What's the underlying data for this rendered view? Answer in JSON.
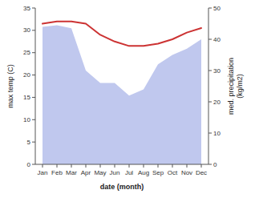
{
  "chart_data": {
    "type": "line",
    "categories": [
      "Jan",
      "Feb",
      "Mar",
      "Apr",
      "May",
      "Jun",
      "Jul",
      "Aug",
      "Sep",
      "Oct",
      "Nov",
      "Dec"
    ],
    "series": [
      {
        "type": "area",
        "axis": "y2",
        "color": "#c0c8ee",
        "values": [
          44.0,
          44.5,
          43.5,
          30.0,
          26.0,
          26.0,
          22.0,
          24.0,
          32.0,
          35.0,
          37.0,
          40.0
        ]
      },
      {
        "type": "line",
        "color": "#cc3333",
        "values": [
          31.5,
          32.0,
          32.0,
          31.5,
          29.0,
          27.5,
          26.5,
          26.5,
          27.0,
          28.0,
          29.5,
          30.5
        ]
      }
    ],
    "xlabel": "date (month)",
    "ylabel": "max temp (C)",
    "y2label": "med. precipitation\n(kg/m2)",
    "ylim": [
      0,
      35
    ],
    "yticks": [
      0,
      5,
      10,
      15,
      20,
      25,
      30,
      35
    ],
    "y2lim": [
      0,
      50
    ],
    "y2ticks": [
      0,
      10,
      20,
      30,
      40,
      50
    ],
    "grid": false
  }
}
